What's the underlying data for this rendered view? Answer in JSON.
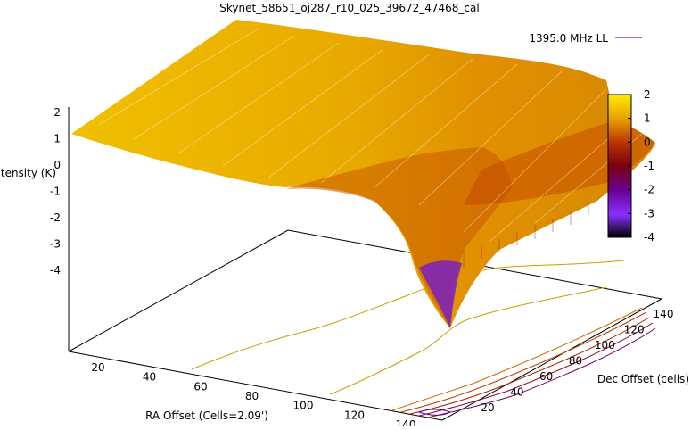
{
  "chart_data": {
    "type": "surface",
    "title": "Skynet_58651_oj287_r10_025_39672_47468_cal",
    "zlabel": "Intensity (K)",
    "xlabel": "RA Offset (Cells=2.09')",
    "ylabel": "Dec Offset (cells)",
    "legend": {
      "label": "1395.0 MHz LL",
      "color": "#7a00c8",
      "position": "top-right"
    },
    "z_ticks": [
      "2",
      "1",
      "0",
      "-1",
      "-2",
      "-3",
      "-4"
    ],
    "x_ticks": [
      "20",
      "40",
      "60",
      "80",
      "100",
      "120",
      "140"
    ],
    "y_ticks": [
      "20",
      "40",
      "60",
      "80",
      "100",
      "120",
      "140"
    ],
    "colorbar": {
      "ticks": [
        "2",
        "1",
        "0",
        "-1",
        "-2",
        "-3",
        "-4"
      ],
      "range": [
        -4,
        2
      ],
      "colors": [
        "#ffea00",
        "#e6a000",
        "#b83300",
        "#7a0010",
        "#6a0090",
        "#8a30ff",
        "#000000"
      ]
    },
    "xlim": [
      0,
      150
    ],
    "ylim": [
      0,
      150
    ],
    "zlim": [
      -4,
      2
    ],
    "surface_notes": {
      "baseline_intensity_K": 1.2,
      "min_intensity_K": -4,
      "dip_location_x_cells": 140,
      "dip_location_y_cells": 75
    }
  }
}
